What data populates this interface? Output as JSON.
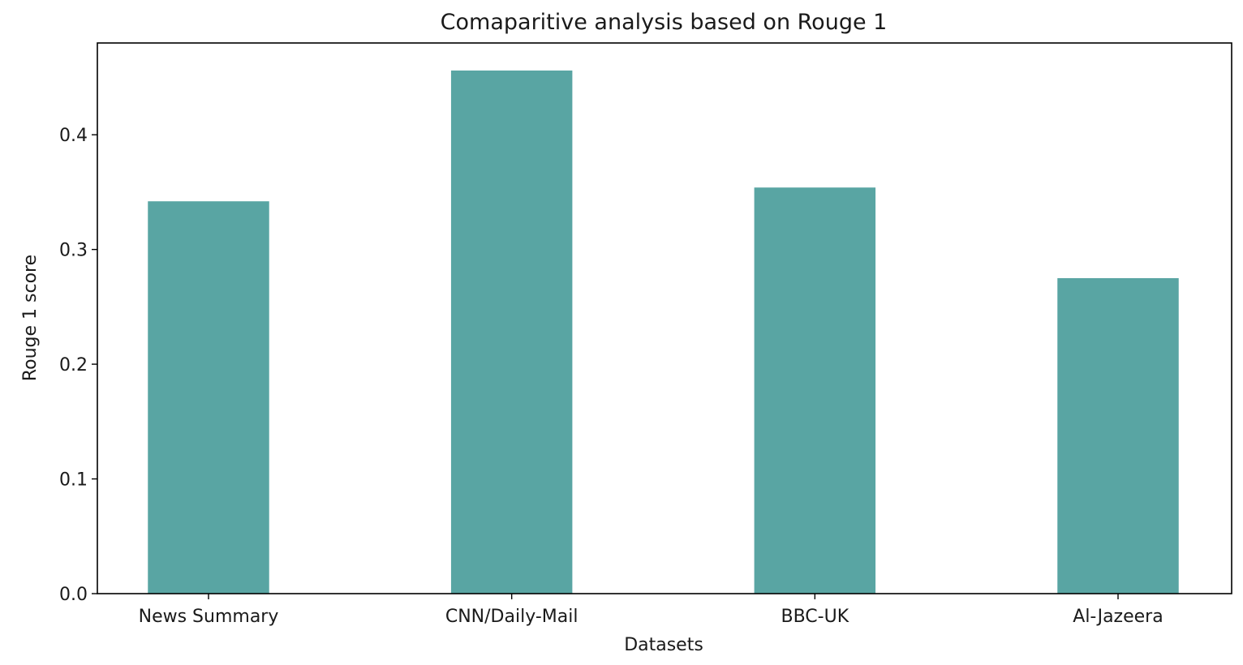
{
  "chart_data": {
    "type": "bar",
    "title": "Comaparitive analysis based on Rouge 1",
    "xlabel": "Datasets",
    "ylabel": "Rouge 1 score",
    "categories": [
      "News Summary",
      "CNN/Daily-Mail",
      "BBC-UK",
      "Al-Jazeera"
    ],
    "values": [
      0.342,
      0.456,
      0.354,
      0.275
    ],
    "ylim": [
      0,
      0.48
    ],
    "yticks": [
      0.0,
      0.1,
      0.2,
      0.3,
      0.4
    ],
    "ytick_labels": [
      "0.0",
      "0.1",
      "0.2",
      "0.3",
      "0.4"
    ],
    "grid": false,
    "legend": "none",
    "bar_color": "#59a5a3"
  }
}
